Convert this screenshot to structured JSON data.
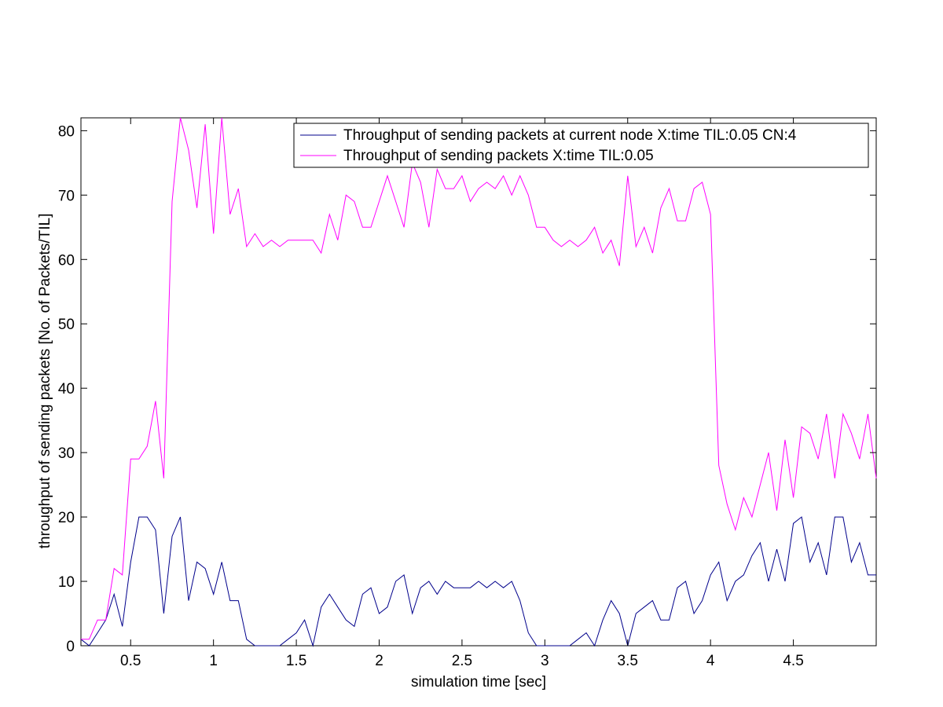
{
  "chart_data": {
    "type": "line",
    "xlabel": "simulation time [sec]",
    "ylabel": "throughput of sending packets [No. of Packets/TIL]",
    "xlim": [
      0.2,
      5.0
    ],
    "ylim": [
      0,
      82
    ],
    "xticks": [
      0.5,
      1,
      1.5,
      2,
      2.5,
      3,
      3.5,
      4,
      4.5
    ],
    "xtick_labels": [
      "0.5",
      "1",
      "1.5",
      "2",
      "2.5",
      "3",
      "3.5",
      "4",
      "4.5"
    ],
    "yticks": [
      0,
      10,
      20,
      30,
      40,
      50,
      60,
      70,
      80
    ],
    "ytick_labels": [
      "0",
      "10",
      "20",
      "30",
      "40",
      "50",
      "60",
      "70",
      "80"
    ],
    "grid": false,
    "legend_position": "top-right",
    "x": [
      0.2,
      0.25,
      0.3,
      0.35,
      0.4,
      0.45,
      0.5,
      0.55,
      0.6,
      0.65,
      0.7,
      0.75,
      0.8,
      0.85,
      0.9,
      0.95,
      1.0,
      1.05,
      1.1,
      1.15,
      1.2,
      1.25,
      1.3,
      1.35,
      1.4,
      1.45,
      1.5,
      1.55,
      1.6,
      1.65,
      1.7,
      1.75,
      1.8,
      1.85,
      1.9,
      1.95,
      2.0,
      2.05,
      2.1,
      2.15,
      2.2,
      2.25,
      2.3,
      2.35,
      2.4,
      2.45,
      2.5,
      2.55,
      2.6,
      2.65,
      2.7,
      2.75,
      2.8,
      2.85,
      2.9,
      2.95,
      3.0,
      3.05,
      3.1,
      3.15,
      3.2,
      3.25,
      3.3,
      3.35,
      3.4,
      3.45,
      3.5,
      3.55,
      3.6,
      3.65,
      3.7,
      3.75,
      3.8,
      3.85,
      3.9,
      3.95,
      4.0,
      4.05,
      4.1,
      4.15,
      4.2,
      4.25,
      4.3,
      4.35,
      4.4,
      4.45,
      4.5,
      4.55,
      4.6,
      4.65,
      4.7,
      4.75,
      4.8,
      4.85,
      4.9,
      4.95,
      5.0
    ],
    "series": [
      {
        "name": "Throughput of sending packets at current node X:time TIL:0.05 CN:4",
        "color": "#00008b",
        "values": [
          1,
          0,
          2,
          4,
          8,
          3,
          13,
          20,
          20,
          18,
          5,
          17,
          20,
          7,
          13,
          12,
          8,
          13,
          7,
          7,
          1,
          0,
          0,
          0,
          0,
          1,
          2,
          4,
          0,
          6,
          8,
          6,
          4,
          3,
          8,
          9,
          5,
          6,
          10,
          11,
          5,
          9,
          10,
          8,
          10,
          9,
          9,
          9,
          10,
          9,
          10,
          9,
          10,
          7,
          2,
          0,
          0,
          0,
          0,
          0,
          1,
          2,
          0,
          4,
          7,
          5,
          0,
          5,
          6,
          7,
          4,
          4,
          9,
          10,
          5,
          7,
          11,
          13,
          7,
          10,
          11,
          14,
          16,
          10,
          15,
          10,
          19,
          20,
          13,
          16,
          11,
          20,
          20,
          13,
          16,
          11,
          11
        ]
      },
      {
        "name": "Throughput of sending packets X:time TIL:0.05",
        "color": "#ff00ff",
        "values": [
          1,
          1,
          4,
          4,
          12,
          11,
          29,
          29,
          31,
          38,
          26,
          69,
          82,
          77,
          68,
          81,
          64,
          82,
          67,
          71,
          62,
          64,
          62,
          63,
          62,
          63,
          63,
          63,
          63,
          61,
          67,
          63,
          70,
          69,
          65,
          65,
          69,
          73,
          69,
          65,
          75,
          72,
          65,
          74,
          71,
          71,
          73,
          69,
          71,
          72,
          71,
          73,
          70,
          73,
          70,
          65,
          65,
          63,
          62,
          63,
          62,
          63,
          65,
          61,
          63,
          59,
          73,
          62,
          65,
          61,
          68,
          71,
          66,
          66,
          71,
          72,
          67,
          28,
          22,
          18,
          23,
          20,
          25,
          30,
          21,
          32,
          23,
          34,
          33,
          29,
          36,
          26,
          36,
          33,
          29,
          36,
          26
        ]
      }
    ]
  }
}
